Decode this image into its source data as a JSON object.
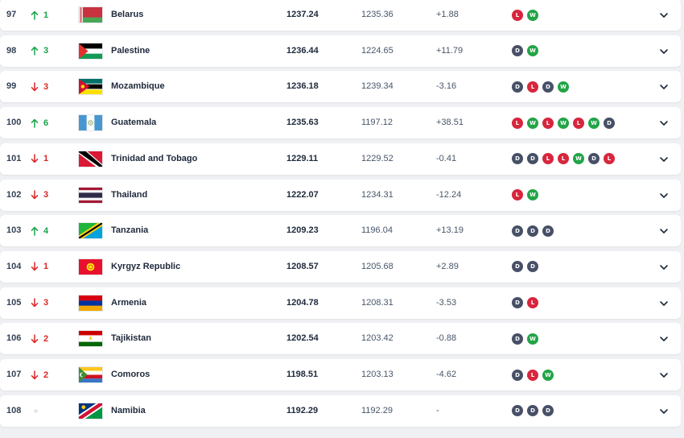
{
  "colors": {
    "up": "#16a34a",
    "down": "#dc2626",
    "win": "#22a447",
    "loss": "#d7263d",
    "draw": "#475067"
  },
  "rows": [
    {
      "rank": "97",
      "trend": "up",
      "move": "1",
      "country": "Belarus",
      "flag": "belarus",
      "points": "1237.24",
      "prev": "1235.36",
      "change": "+1.88",
      "form": [
        "L",
        "W"
      ]
    },
    {
      "rank": "98",
      "trend": "up",
      "move": "3",
      "country": "Palestine",
      "flag": "palestine",
      "points": "1236.44",
      "prev": "1224.65",
      "change": "+11.79",
      "form": [
        "D",
        "W"
      ]
    },
    {
      "rank": "99",
      "trend": "down",
      "move": "3",
      "country": "Mozambique",
      "flag": "mozambique",
      "points": "1236.18",
      "prev": "1239.34",
      "change": "-3.16",
      "form": [
        "D",
        "L",
        "D",
        "W"
      ]
    },
    {
      "rank": "100",
      "trend": "up",
      "move": "6",
      "country": "Guatemala",
      "flag": "guatemala",
      "points": "1235.63",
      "prev": "1197.12",
      "change": "+38.51",
      "form": [
        "L",
        "W",
        "L",
        "W",
        "L",
        "W",
        "D"
      ]
    },
    {
      "rank": "101",
      "trend": "down",
      "move": "1",
      "country": "Trinidad and Tobago",
      "flag": "trinidad",
      "points": "1229.11",
      "prev": "1229.52",
      "change": "-0.41",
      "form": [
        "D",
        "D",
        "L",
        "L",
        "W",
        "D",
        "L"
      ]
    },
    {
      "rank": "102",
      "trend": "down",
      "move": "3",
      "country": "Thailand",
      "flag": "thailand",
      "points": "1222.07",
      "prev": "1234.31",
      "change": "-12.24",
      "form": [
        "L",
        "W"
      ]
    },
    {
      "rank": "103",
      "trend": "up",
      "move": "4",
      "country": "Tanzania",
      "flag": "tanzania",
      "points": "1209.23",
      "prev": "1196.04",
      "change": "+13.19",
      "form": [
        "D",
        "D",
        "D"
      ]
    },
    {
      "rank": "104",
      "trend": "down",
      "move": "1",
      "country": "Kyrgyz Republic",
      "flag": "kyrgyz",
      "points": "1208.57",
      "prev": "1205.68",
      "change": "+2.89",
      "form": [
        "D",
        "D"
      ]
    },
    {
      "rank": "105",
      "trend": "down",
      "move": "3",
      "country": "Armenia",
      "flag": "armenia",
      "points": "1204.78",
      "prev": "1208.31",
      "change": "-3.53",
      "form": [
        "D",
        "L"
      ]
    },
    {
      "rank": "106",
      "trend": "down",
      "move": "2",
      "country": "Tajikistan",
      "flag": "tajikistan",
      "points": "1202.54",
      "prev": "1203.42",
      "change": "-0.88",
      "form": [
        "D",
        "W"
      ]
    },
    {
      "rank": "107",
      "trend": "down",
      "move": "2",
      "country": "Comoros",
      "flag": "comoros",
      "points": "1198.51",
      "prev": "1203.13",
      "change": "-4.62",
      "form": [
        "D",
        "L",
        "W"
      ]
    },
    {
      "rank": "108",
      "trend": "none",
      "move": "",
      "country": "Namibia",
      "flag": "namibia",
      "points": "1192.29",
      "prev": "1192.29",
      "change": "-",
      "form": [
        "D",
        "D",
        "D"
      ]
    }
  ]
}
